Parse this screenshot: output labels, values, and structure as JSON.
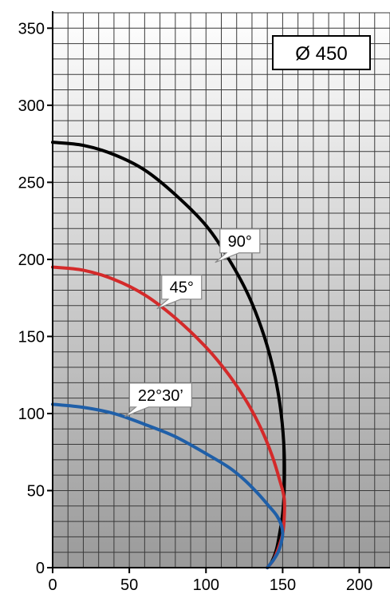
{
  "chart_data": {
    "type": "line",
    "title": "",
    "xlabel": "",
    "ylabel": "",
    "xlim": [
      0,
      220
    ],
    "ylim": [
      0,
      360
    ],
    "x_ticks": [
      0,
      50,
      100,
      150,
      200
    ],
    "y_ticks": [
      0,
      50,
      100,
      150,
      200,
      250,
      300,
      350
    ],
    "grid": true,
    "badge": "Ø 450",
    "series": [
      {
        "name": "90°",
        "color": "#000000",
        "points": [
          [
            0,
            276
          ],
          [
            20,
            274
          ],
          [
            40,
            268
          ],
          [
            60,
            258
          ],
          [
            80,
            242
          ],
          [
            100,
            222
          ],
          [
            115,
            200
          ],
          [
            128,
            176
          ],
          [
            138,
            150
          ],
          [
            145,
            124
          ],
          [
            149,
            100
          ],
          [
            151,
            75
          ],
          [
            151,
            50
          ],
          [
            150,
            35
          ],
          [
            148,
            22
          ],
          [
            146,
            12
          ],
          [
            143,
            4
          ],
          [
            140,
            0
          ]
        ]
      },
      {
        "name": "45°",
        "color": "#d42a2a",
        "points": [
          [
            0,
            195
          ],
          [
            20,
            193
          ],
          [
            40,
            187
          ],
          [
            60,
            177
          ],
          [
            80,
            162
          ],
          [
            100,
            143
          ],
          [
            115,
            125
          ],
          [
            127,
            107
          ],
          [
            136,
            90
          ],
          [
            143,
            73
          ],
          [
            148,
            57
          ],
          [
            151,
            45
          ],
          [
            151,
            32
          ],
          [
            150,
            22
          ],
          [
            147,
            12
          ],
          [
            144,
            5
          ],
          [
            140,
            0
          ]
        ]
      },
      {
        "name": "22°30’",
        "color": "#1f5fa8",
        "points": [
          [
            0,
            106
          ],
          [
            20,
            104
          ],
          [
            40,
            100
          ],
          [
            60,
            93
          ],
          [
            80,
            85
          ],
          [
            100,
            74
          ],
          [
            115,
            65
          ],
          [
            125,
            57
          ],
          [
            134,
            48
          ],
          [
            141,
            40
          ],
          [
            146,
            34
          ],
          [
            149,
            28
          ],
          [
            150,
            22
          ],
          [
            149,
            16
          ],
          [
            147,
            10
          ],
          [
            144,
            5
          ],
          [
            140,
            0
          ]
        ]
      }
    ],
    "callouts": [
      {
        "series": "90°",
        "text": "90°",
        "anchor": [
          106,
          198
        ]
      },
      {
        "series": "45°",
        "text": "45°",
        "anchor": [
          68,
          168
        ]
      },
      {
        "series": "22°30’",
        "text": "22°30’",
        "anchor": [
          47,
          98
        ]
      }
    ]
  }
}
